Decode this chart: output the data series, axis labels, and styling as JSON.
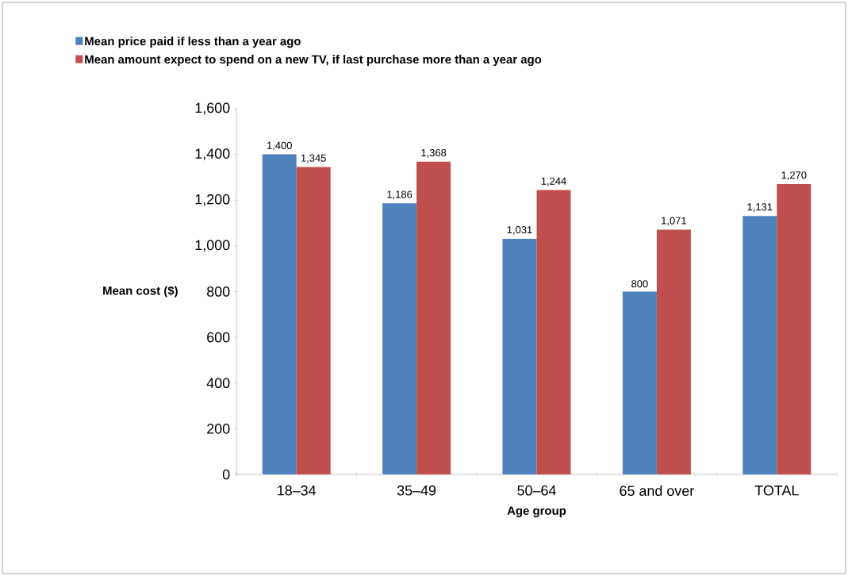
{
  "chart_data": {
    "type": "bar",
    "xlabel": "Age group",
    "ylabel": "Mean cost ($)",
    "categories": [
      "18–34",
      "35–49",
      "50–64",
      "65 and over",
      "TOTAL"
    ],
    "series": [
      {
        "name": "Mean price paid if less than a year ago",
        "color": "#4f81bd",
        "values": [
          1400,
          1186,
          1031,
          800,
          1131
        ],
        "value_labels": [
          "1,400",
          "1,186",
          "1,031",
          "800",
          "1,131"
        ]
      },
      {
        "name": "Mean amount expect to spend on a new TV, if last purchase more than a year ago",
        "color": "#c0504d",
        "values": [
          1345,
          1368,
          1244,
          1071,
          1270
        ],
        "value_labels": [
          "1,345",
          "1,368",
          "1,244",
          "1,071",
          "1,270"
        ]
      }
    ],
    "ylim": [
      0,
      1600
    ],
    "yticks": [
      0,
      {
        "value": 200,
        "label": "200"
      },
      {
        "value": 400,
        "label": "400"
      },
      {
        "value": 600,
        "label": "600"
      },
      {
        "value": 800,
        "label": "800"
      },
      {
        "value": 1000,
        "label": "1,000"
      },
      {
        "value": 1200,
        "label": "1,200"
      },
      {
        "value": 1400,
        "label": "1,400"
      },
      {
        "value": 1600,
        "label": "1,600"
      }
    ],
    "legend": "top left",
    "grid": false
  }
}
